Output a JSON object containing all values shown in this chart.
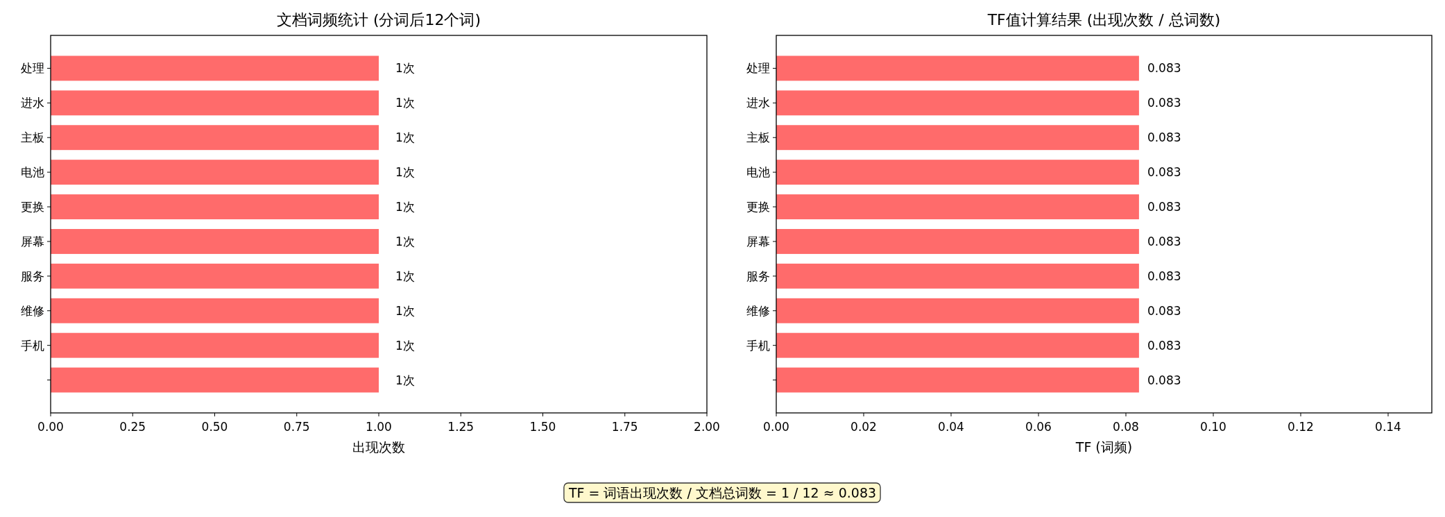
{
  "chart_data": [
    {
      "type": "bar",
      "orientation": "horizontal",
      "title": "文档词频统计 (分词后12个词)",
      "xlabel": "出现次数",
      "categories": [
        "处理",
        "进水",
        "主板",
        "电池",
        "更换",
        "屏幕",
        "服务",
        "维修",
        "手机",
        null
      ],
      "values": [
        1,
        1,
        1,
        1,
        1,
        1,
        1,
        1,
        1,
        1
      ],
      "color": "#ff6b6b",
      "value_labels": [
        "1次",
        "1次",
        "1次",
        "1次",
        "1次",
        "1次",
        "1次",
        "1次",
        "1次",
        "1次"
      ],
      "xlim": [
        0,
        2
      ],
      "xticks": [
        {
          "value": 0,
          "label": "0.00"
        },
        {
          "value": 0.25,
          "label": "0.25"
        },
        {
          "value": 0.5,
          "label": "0.50"
        },
        {
          "value": 0.75,
          "label": "0.75"
        },
        {
          "value": 1,
          "label": "1.00"
        },
        {
          "value": 1.25,
          "label": "1.25"
        },
        {
          "value": 1.5,
          "label": "1.50"
        },
        {
          "value": 1.75,
          "label": "1.75"
        },
        {
          "value": 2,
          "label": "2.00"
        }
      ],
      "annotations": [
        "TF = 词语出现次数 / 文档总词数 = 1 / 12 ≈ 0.083"
      ]
    },
    {
      "type": "bar",
      "orientation": "horizontal",
      "title": "TF值计算结果 (出现次数 / 总词数)",
      "xlabel": "TF (词频)",
      "categories": [
        "处理",
        "进水",
        "主板",
        "电池",
        "更换",
        "屏幕",
        "服务",
        "维修",
        "手机",
        null
      ],
      "values": [
        0.083,
        0.083,
        0.083,
        0.083,
        0.083,
        0.083,
        0.083,
        0.083,
        0.083,
        0.083
      ],
      "color": "#ff6b6b",
      "data_labels": true,
      "xlim": [
        0,
        0.15
      ],
      "xticks": [
        {
          "value": 0,
          "label": "0.00"
        },
        {
          "value": 0.02,
          "label": "0.02"
        },
        {
          "value": 0.04,
          "label": "0.04"
        },
        {
          "value": 0.06,
          "label": "0.06"
        },
        {
          "value": 0.08,
          "label": "0.08"
        },
        {
          "value": 0.1,
          "label": "0.10"
        },
        {
          "value": 0.12,
          "label": "0.12"
        },
        {
          "value": 0.14,
          "label": "0.14"
        }
      ]
    }
  ]
}
